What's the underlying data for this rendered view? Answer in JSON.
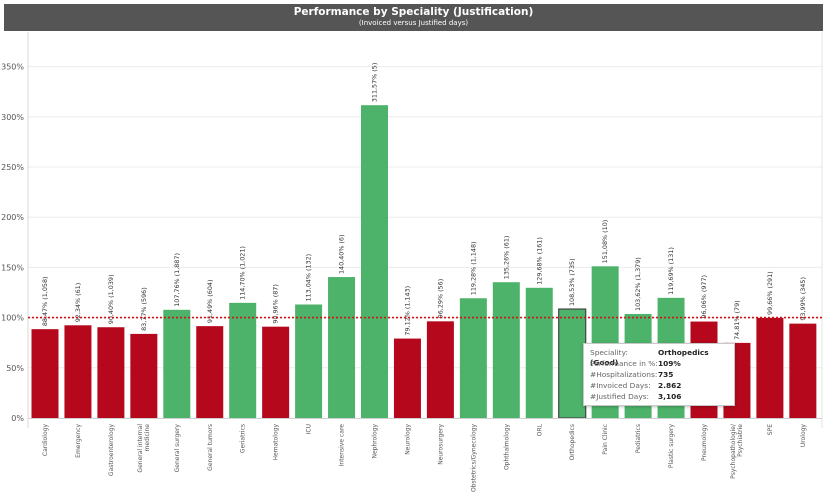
{
  "header": {
    "title": "Performance by Speciality (Justification)",
    "subtitle": "(Invoiced versus Justified days)"
  },
  "colors": {
    "good": "#4db36a",
    "bad": "#b5081c",
    "reference_line": "#d11515",
    "selected_outline": "#444444"
  },
  "chart_data": {
    "type": "bar",
    "title": "Performance by Speciality (Justification)",
    "subtitle": "(Invoiced versus Justified days)",
    "xlabel": "",
    "ylabel": "",
    "ylim": [
      0,
      370
    ],
    "yticks": [
      "0%",
      "50%",
      "100%",
      "150%",
      "200%",
      "250%",
      "300%",
      "350%"
    ],
    "reference_line": 100,
    "grid": true,
    "categories": [
      "Cardiology",
      "Emergency",
      "Gastroenterology",
      "General internal medicine",
      "General surgery",
      "General tumors",
      "Geriatrics",
      "Hematology",
      "ICU",
      "Intensive care",
      "Nephrology",
      "Neurology",
      "Neurosurgery",
      "Obstetrics/Gynecology",
      "Ophthalmology",
      "ORL",
      "Orthopedics",
      "Pain Clinic",
      "Pediatrics",
      "Plastic surgery",
      "Pneumology",
      "Psychopathologie/ Psychiatrie",
      "SPE",
      "Urology"
    ],
    "category_lines": [
      [
        "Cardiology"
      ],
      [
        "Emergency"
      ],
      [
        "Gastroenterology"
      ],
      [
        "General internal",
        "medicine"
      ],
      [
        "General surgery"
      ],
      [
        "General tumors"
      ],
      [
        "Geriatrics"
      ],
      [
        "Hematology"
      ],
      [
        "ICU"
      ],
      [
        "Intensive care"
      ],
      [
        "Nephrology"
      ],
      [
        "Neurology"
      ],
      [
        "Neurosurgery"
      ],
      [
        "Obstetrics/Gynecology"
      ],
      [
        "Ophthalmology"
      ],
      [
        "ORL"
      ],
      [
        "Orthopedics"
      ],
      [
        "Pain Clinic"
      ],
      [
        "Pediatrics"
      ],
      [
        "Plastic surgery"
      ],
      [
        "Pneumology"
      ],
      [
        "Psychopathologie/",
        "Psychiatrie"
      ],
      [
        "SPE"
      ],
      [
        "Urology"
      ]
    ],
    "values": [
      88.47,
      92.34,
      90.4,
      83.77,
      107.76,
      91.49,
      114.7,
      90.96,
      113.04,
      140.4,
      311.57,
      79.12,
      96.29,
      119.28,
      135.26,
      129.68,
      108.53,
      151.08,
      103.62,
      119.69,
      96.06,
      74.81,
      99.66,
      93.99
    ],
    "labels": [
      "88,47% (1,058)",
      "92,34% (61)",
      "90,40% (1,039)",
      "83,77% (596)",
      "107,76% (1,887)",
      "91,49% (604)",
      "114,70% (1,021)",
      "90,96% (87)",
      "113,04% (132)",
      "140,40% (6)",
      "311,57% (5)",
      "79,12% (1,143)",
      "96,29% (56)",
      "119,28% (1,148)",
      "135,26% (61)",
      "129,68% (161)",
      "108,53% (735)",
      "151,08% (10)",
      "103,62% (1,379)",
      "119,69% (131)",
      "96,06% (977)",
      "74,81% (79)",
      "99,66% (291)",
      "93,99% (345)"
    ],
    "status": [
      "bad",
      "bad",
      "bad",
      "bad",
      "good",
      "bad",
      "good",
      "bad",
      "good",
      "good",
      "good",
      "bad",
      "bad",
      "good",
      "good",
      "good",
      "good",
      "good",
      "good",
      "good",
      "bad",
      "bad",
      "bad",
      "bad"
    ],
    "selected": "Orthopedics"
  },
  "tooltip": {
    "rows": [
      {
        "key": "Speciality:",
        "value": "Orthopedics (Good)"
      },
      {
        "key": "Performance in %:",
        "value": "109%"
      },
      {
        "key": "#Hospitalizations:",
        "value": "735"
      },
      {
        "key": "#Invoiced Days:",
        "value": "2.862"
      },
      {
        "key": "#Justified Days:",
        "value": "3,106"
      }
    ]
  }
}
